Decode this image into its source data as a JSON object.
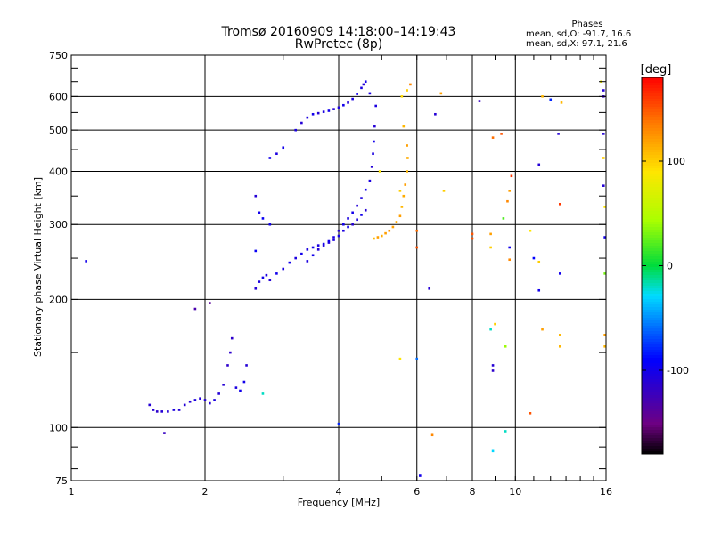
{
  "title": "Tromsø 20160909 14:18:00–14:19:43",
  "subtitle": "RwPretec (8p)",
  "phase_info": {
    "heading": "Phases",
    "line_o": "mean, sd,O: -91.7, 16.6",
    "line_x": "mean, sd,X:  97.1, 21.6"
  },
  "colorbar": {
    "label": "[deg]",
    "ticks": [
      "100",
      "0",
      "-100"
    ],
    "tick_values": [
      100,
      0,
      -100
    ],
    "range": [
      -180,
      180
    ]
  },
  "chart_data": {
    "type": "scatter",
    "title": "Tromsø 20160909 14:18:00–14:19:43",
    "subtitle": "RwPretec (8p)",
    "xlabel": "Frequency [MHz]",
    "ylabel": "Stationary phase Virtual Height [km]",
    "x_scale": "log",
    "y_scale": "log",
    "xlim": [
      1,
      16
    ],
    "ylim": [
      75,
      750
    ],
    "x_ticks": [
      "1",
      "2",
      "4",
      "6",
      "8",
      "10",
      "16"
    ],
    "x_tick_values": [
      1,
      2,
      4,
      6,
      8,
      10,
      16
    ],
    "y_ticks": [
      "750",
      "600",
      "500",
      "400",
      "300",
      "200",
      "100",
      "75"
    ],
    "y_tick_values": [
      750,
      600,
      500,
      400,
      300,
      200,
      100,
      75
    ],
    "grid": true,
    "series": [
      {
        "values": [
          [
            1.08,
            246,
            -100
          ],
          [
            1.5,
            113,
            -110
          ],
          [
            1.53,
            110,
            -110
          ],
          [
            1.56,
            109,
            -115
          ],
          [
            1.6,
            109,
            -110
          ],
          [
            1.65,
            109,
            -110
          ],
          [
            1.7,
            110,
            -105
          ],
          [
            1.75,
            110,
            -110
          ],
          [
            1.8,
            113,
            -110
          ],
          [
            1.85,
            115,
            -110
          ],
          [
            1.9,
            116,
            -105
          ],
          [
            1.95,
            117,
            -110
          ],
          [
            2.0,
            116,
            -110
          ],
          [
            2.05,
            114,
            -110
          ],
          [
            2.1,
            116,
            -105
          ],
          [
            2.15,
            120,
            -110
          ],
          [
            2.2,
            126,
            -110
          ],
          [
            2.25,
            140,
            -115
          ],
          [
            2.28,
            150,
            -115
          ],
          [
            2.3,
            162,
            -115
          ],
          [
            2.35,
            124,
            -105
          ],
          [
            2.4,
            122,
            -100
          ],
          [
            2.45,
            128,
            -100
          ],
          [
            2.48,
            140,
            -110
          ],
          [
            1.62,
            97,
            -120
          ],
          [
            1.9,
            190,
            -130
          ],
          [
            2.05,
            196,
            -140
          ],
          [
            2.6,
            212,
            -110
          ],
          [
            2.65,
            220,
            -105
          ],
          [
            2.7,
            225,
            -100
          ],
          [
            2.75,
            228,
            -105
          ],
          [
            2.8,
            222,
            -110
          ],
          [
            2.9,
            230,
            -100
          ],
          [
            3.0,
            236,
            -105
          ],
          [
            3.1,
            244,
            -100
          ],
          [
            3.2,
            250,
            -105
          ],
          [
            3.3,
            256,
            -100
          ],
          [
            3.4,
            262,
            -105
          ],
          [
            3.5,
            265,
            -100
          ],
          [
            3.6,
            268,
            -105
          ],
          [
            3.7,
            270,
            -100
          ],
          [
            3.8,
            272,
            -110
          ],
          [
            3.9,
            276,
            -105
          ],
          [
            4.0,
            282,
            -100
          ],
          [
            4.1,
            290,
            -105
          ],
          [
            4.2,
            296,
            -100
          ],
          [
            4.3,
            300,
            -110
          ],
          [
            4.4,
            308,
            -105
          ],
          [
            4.5,
            316,
            -100
          ],
          [
            4.6,
            324,
            -110
          ],
          [
            3.4,
            246,
            -105
          ],
          [
            3.5,
            254,
            -100
          ],
          [
            3.6,
            262,
            -110
          ],
          [
            3.7,
            268,
            -105
          ],
          [
            3.8,
            274,
            -100
          ],
          [
            3.9,
            280,
            -105
          ],
          [
            4.0,
            290,
            -110
          ],
          [
            4.1,
            300,
            -100
          ],
          [
            4.2,
            310,
            -105
          ],
          [
            4.3,
            320,
            -100
          ],
          [
            4.4,
            332,
            -110
          ],
          [
            4.5,
            346,
            -105
          ],
          [
            4.6,
            362,
            -100
          ],
          [
            4.7,
            380,
            -105
          ],
          [
            4.75,
            410,
            -110
          ],
          [
            4.78,
            440,
            -105
          ],
          [
            4.8,
            470,
            -100
          ],
          [
            4.82,
            510,
            -110
          ],
          [
            4.85,
            570,
            -105
          ],
          [
            2.6,
            260,
            -95
          ],
          [
            2.65,
            320,
            -100
          ],
          [
            2.7,
            310,
            -95
          ],
          [
            2.8,
            300,
            -100
          ],
          [
            2.6,
            350,
            -110
          ],
          [
            2.8,
            430,
            -100
          ],
          [
            2.9,
            440,
            -105
          ],
          [
            3.0,
            455,
            -100
          ],
          [
            3.2,
            500,
            -105
          ],
          [
            3.3,
            520,
            -110
          ],
          [
            3.4,
            535,
            -105
          ],
          [
            3.5,
            545,
            -100
          ],
          [
            3.6,
            548,
            -110
          ],
          [
            3.7,
            552,
            -105
          ],
          [
            3.8,
            555,
            -100
          ],
          [
            3.9,
            560,
            -110
          ],
          [
            4.0,
            565,
            -105
          ],
          [
            4.1,
            572,
            -100
          ],
          [
            4.2,
            580,
            -110
          ],
          [
            4.3,
            592,
            -105
          ],
          [
            4.4,
            608,
            -100
          ],
          [
            4.5,
            628,
            -105
          ],
          [
            4.55,
            640,
            -110
          ],
          [
            4.6,
            650,
            -100
          ],
          [
            4.7,
            610,
            -105
          ],
          [
            4.0,
            102,
            -80
          ],
          [
            2.7,
            120,
            -20
          ],
          [
            6.1,
            77,
            -100
          ],
          [
            6.0,
            145,
            -60
          ]
        ]
      },
      {
        "values": [
          [
            4.8,
            278,
            110
          ],
          [
            4.9,
            280,
            120
          ],
          [
            5.0,
            282,
            115
          ],
          [
            5.1,
            286,
            120
          ],
          [
            5.2,
            290,
            125
          ],
          [
            5.3,
            296,
            120
          ],
          [
            5.4,
            304,
            115
          ],
          [
            5.5,
            314,
            120
          ],
          [
            5.55,
            330,
            110
          ],
          [
            5.6,
            350,
            115
          ],
          [
            5.65,
            372,
            120
          ],
          [
            5.7,
            400,
            110
          ],
          [
            5.72,
            430,
            115
          ],
          [
            5.7,
            460,
            120
          ],
          [
            5.5,
            360,
            100
          ],
          [
            5.6,
            510,
            110
          ],
          [
            5.55,
            600,
            95
          ],
          [
            5.7,
            620,
            100
          ],
          [
            5.8,
            640,
            130
          ],
          [
            4.95,
            400,
            90
          ],
          [
            6.5,
            96,
            130
          ],
          [
            6.8,
            610,
            120
          ],
          [
            5.5,
            145,
            90
          ]
        ]
      },
      {
        "values": [
          [
            6.0,
            290,
            140
          ],
          [
            6.0,
            265,
            150
          ],
          [
            6.4,
            212,
            -110
          ],
          [
            6.6,
            545,
            -110
          ],
          [
            6.9,
            360,
            100
          ],
          [
            8.0,
            285,
            150
          ],
          [
            8.0,
            278,
            150
          ],
          [
            8.3,
            585,
            -120
          ],
          [
            8.8,
            285,
            120
          ],
          [
            8.8,
            265,
            100
          ],
          [
            8.9,
            480,
            140
          ],
          [
            8.9,
            140,
            -110
          ],
          [
            8.9,
            136,
            -115
          ],
          [
            8.8,
            170,
            -20
          ],
          [
            8.9,
            88,
            -30
          ],
          [
            9.0,
            175,
            100
          ],
          [
            9.3,
            490,
            150
          ],
          [
            9.4,
            310,
            20
          ],
          [
            9.5,
            98,
            -20
          ],
          [
            9.5,
            155,
            40
          ],
          [
            9.6,
            340,
            130
          ],
          [
            9.7,
            360,
            120
          ],
          [
            9.8,
            390,
            160
          ],
          [
            9.7,
            265,
            -100
          ],
          [
            9.7,
            248,
            130
          ],
          [
            10.8,
            290,
            90
          ],
          [
            10.8,
            108,
            150
          ],
          [
            11.0,
            250,
            -90
          ],
          [
            11.3,
            210,
            -100
          ],
          [
            11.3,
            415,
            -110
          ],
          [
            11.3,
            245,
            100
          ],
          [
            11.5,
            600,
            110
          ],
          [
            11.5,
            170,
            120
          ],
          [
            12.0,
            590,
            -80
          ],
          [
            12.5,
            490,
            -110
          ],
          [
            12.6,
            335,
            160
          ],
          [
            12.6,
            230,
            -100
          ],
          [
            12.6,
            165,
            110
          ],
          [
            12.6,
            155,
            110
          ],
          [
            12.7,
            580,
            110
          ],
          [
            15.6,
            650,
            80
          ],
          [
            15.8,
            620,
            -110
          ],
          [
            15.8,
            600,
            -120
          ],
          [
            15.8,
            490,
            -110
          ],
          [
            15.8,
            430,
            100
          ],
          [
            15.8,
            370,
            -110
          ],
          [
            15.9,
            330,
            90
          ],
          [
            15.9,
            280,
            -100
          ],
          [
            15.9,
            230,
            30
          ],
          [
            15.9,
            165,
            120
          ],
          [
            15.9,
            155,
            110
          ]
        ]
      }
    ]
  }
}
